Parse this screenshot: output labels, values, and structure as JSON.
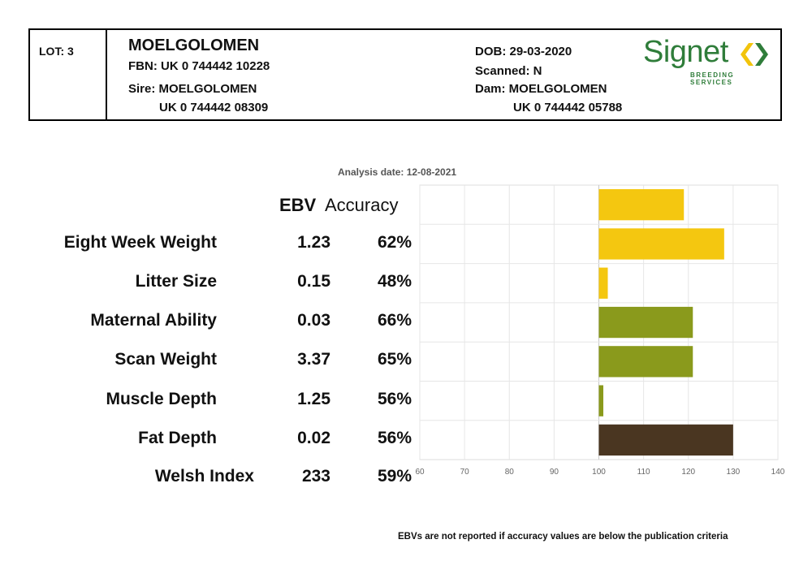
{
  "header": {
    "lot": "LOT: 3",
    "name": "MOELGOLOMEN",
    "fbn": "FBN: UK 0 744442 10228",
    "sire": "Sire: MOELGOLOMEN",
    "sire_id": "UK 0 744442 08309",
    "dob": "DOB: 29-03-2020",
    "scanned": "Scanned: N",
    "dam": "Dam: MOELGOLOMEN",
    "dam_id": "UK 0 744442 05788"
  },
  "logo": {
    "word": "Signet",
    "sub": "BREEDING SERVICES",
    "color": "#2f7d3a",
    "accent": "#f2c40c"
  },
  "analysis_date": "Analysis date: 12-08-2021",
  "columns": {
    "ebv": "EBV",
    "accuracy": "Accuracy"
  },
  "footnote": "EBVs are not reported if accuracy values are below the publication criteria",
  "chart_data": {
    "type": "bar",
    "orientation": "horizontal",
    "categories": [
      "Eight Week Weight",
      "Litter Size",
      "Maternal Ability",
      "Scan Weight",
      "Muscle Depth",
      "Fat Depth",
      "Welsh Index"
    ],
    "ebv_labels": [
      "1.23",
      "0.15",
      "0.03",
      "3.37",
      "1.25",
      "0.02",
      "233"
    ],
    "accuracy_labels": [
      "62%",
      "48%",
      "66%",
      "65%",
      "56%",
      "56%",
      "59%"
    ],
    "values": [
      119,
      128,
      102,
      121,
      121,
      101,
      130
    ],
    "baseline": 100,
    "xlim": [
      60,
      140
    ],
    "xticks": [
      "60",
      "70",
      "80",
      "90",
      "100",
      "110",
      "120",
      "130",
      "140"
    ],
    "colors": [
      "#f4c710",
      "#f4c710",
      "#f4c710",
      "#8a9a1c",
      "#8a9a1c",
      "#8a9a1c",
      "#4a3621"
    ],
    "grid": true
  }
}
